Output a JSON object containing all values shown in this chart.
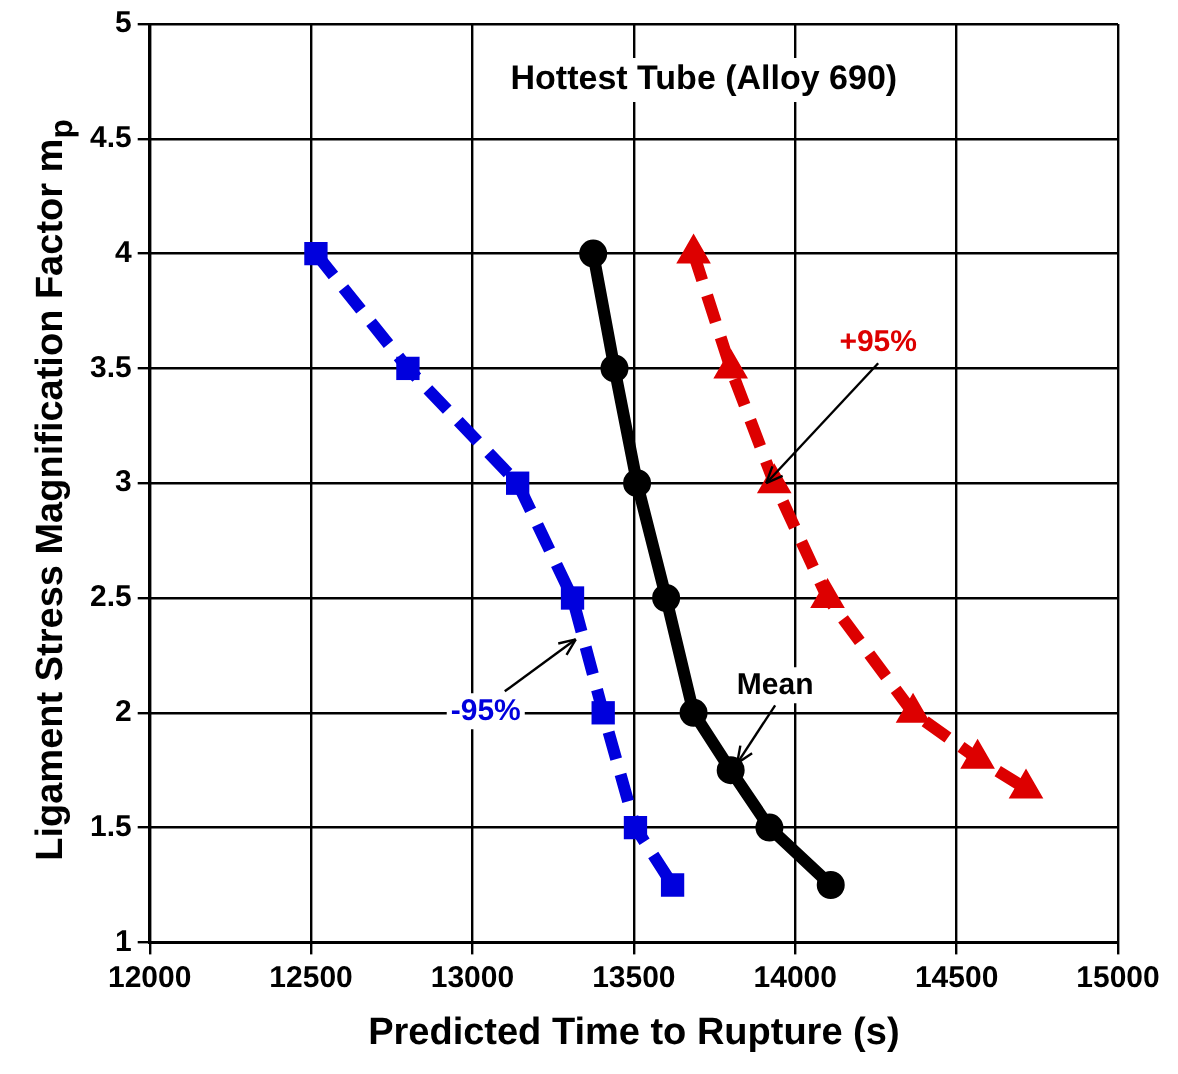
{
  "chart_data": {
    "type": "line",
    "title": "Hottest Tube (Alloy 690)",
    "xlabel": "Predicted Time to Rupture (s)",
    "ylabel": "Ligament Stress Magnification Factor m$_{p}$",
    "xlim": [
      12000,
      15000
    ],
    "xticks": [
      12000,
      12500,
      13000,
      13500,
      14000,
      14500,
      15000
    ],
    "ylim": [
      1,
      5
    ],
    "yticks": [
      1,
      1.5,
      2,
      2.5,
      3,
      3.5,
      4,
      4.5,
      5
    ],
    "grid": true,
    "legend": false,
    "series": [
      {
        "color": "#0000dd",
        "marker": "square",
        "line_style": "dashed",
        "x": [
          12515,
          12800,
          13140,
          13310,
          13405,
          13505,
          13620
        ],
        "values": [
          4,
          3.5,
          3,
          2.5,
          2,
          1.5,
          1.25
        ]
      },
      {
        "color": "#000000",
        "marker": "circle",
        "line_style": "solid",
        "x": [
          13374,
          13440,
          13510,
          13600,
          13685,
          13800,
          13920,
          14110
        ],
        "values": [
          4,
          3.5,
          3,
          2.5,
          2,
          1.75,
          1.5,
          1.25
        ]
      },
      {
        "color": "#dd0000",
        "marker": "triangle",
        "line_style": "dashed",
        "x": [
          13685,
          13800,
          13935,
          14100,
          14365,
          14565,
          14715
        ],
        "values": [
          4,
          3.5,
          3,
          2.5,
          2,
          1.8,
          1.67
        ]
      }
    ],
    "annotations": [
      {
        "text": "-95%",
        "x": 13320,
        "y": 2.32
      },
      {
        "text": "Mean",
        "x": 13820,
        "y": 1.78
      },
      {
        "text": "+95%",
        "x": 13910,
        "y": 3.0
      }
    ]
  }
}
